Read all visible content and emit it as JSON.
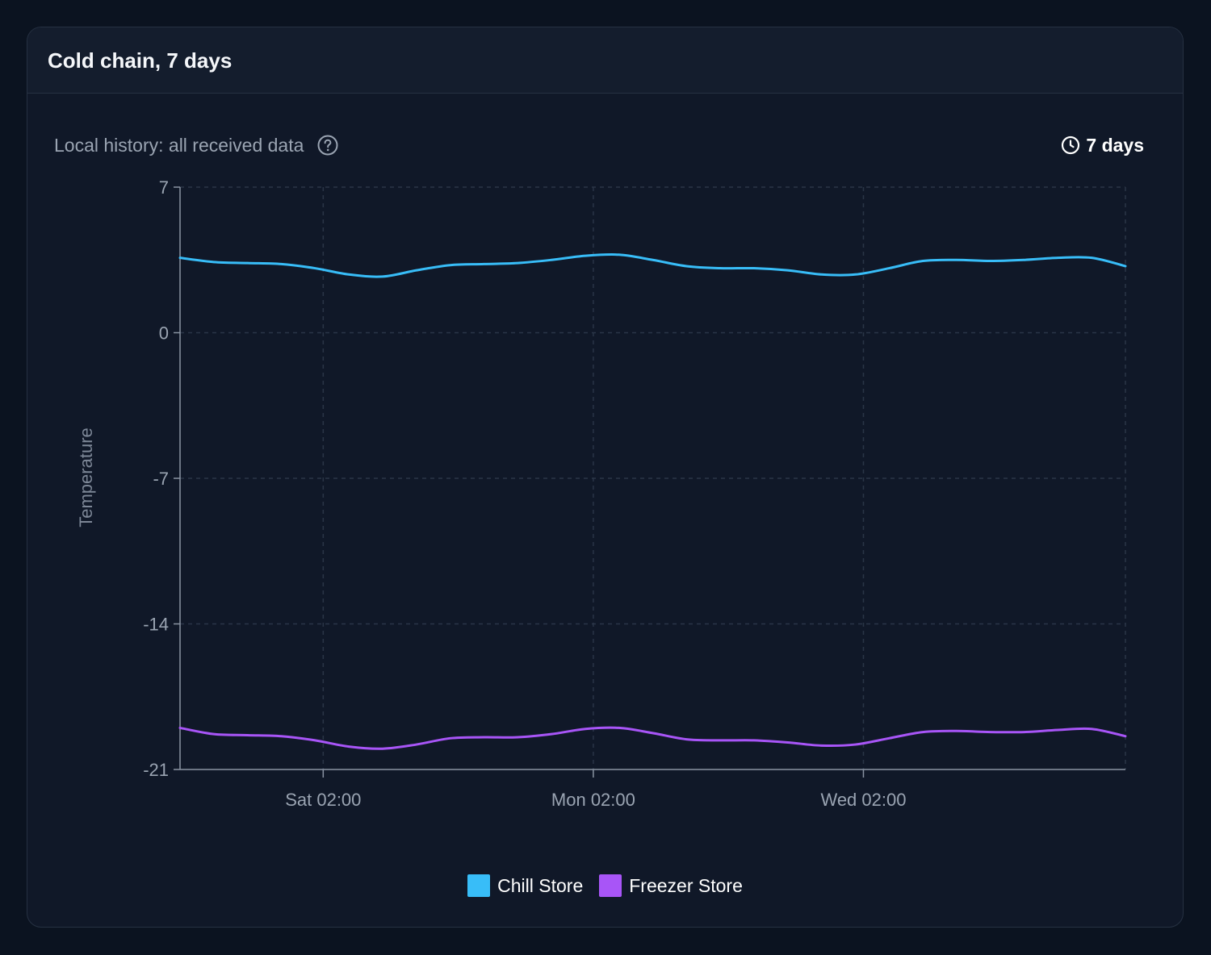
{
  "card": {
    "title": "Cold chain, 7 days",
    "subtitle": "Local history: all received data",
    "range_label": "7 days"
  },
  "icons": {
    "help": "help-circle-icon",
    "clock": "clock-icon"
  },
  "colors": {
    "chill": "#38bdf8",
    "freezer": "#a855f7"
  },
  "chart_data": {
    "type": "line",
    "title": "",
    "xlabel": "",
    "ylabel": "Temperature",
    "ylim": [
      -21,
      7
    ],
    "yticks": [
      7,
      0,
      -7,
      -14,
      -21
    ],
    "xlim": [
      0,
      7
    ],
    "xticks": [
      {
        "x": 1.06,
        "label": "Sat 02:00"
      },
      {
        "x": 3.06,
        "label": "Mon 02:00"
      },
      {
        "x": 5.06,
        "label": "Wed 02:00"
      }
    ],
    "grid": true,
    "legend_position": "bottom",
    "x": [
      0,
      0.25,
      0.5,
      0.75,
      1.0,
      1.25,
      1.5,
      1.75,
      2.0,
      2.25,
      2.5,
      2.75,
      3.0,
      3.25,
      3.5,
      3.75,
      4.0,
      4.25,
      4.5,
      4.75,
      5.0,
      5.25,
      5.5,
      5.75,
      6.0,
      6.25,
      6.5,
      6.75,
      7.0
    ],
    "series": [
      {
        "name": "Chill Store",
        "color": "#38bdf8",
        "values": [
          3.6,
          3.4,
          3.35,
          3.3,
          3.1,
          2.8,
          2.7,
          3.0,
          3.25,
          3.3,
          3.35,
          3.5,
          3.7,
          3.75,
          3.5,
          3.2,
          3.1,
          3.1,
          3.0,
          2.8,
          2.8,
          3.1,
          3.45,
          3.5,
          3.45,
          3.5,
          3.6,
          3.6,
          3.2
        ]
      },
      {
        "name": "Freezer Store",
        "color": "#a855f7",
        "values": [
          -19.0,
          -19.3,
          -19.35,
          -19.4,
          -19.6,
          -19.9,
          -20.0,
          -19.8,
          -19.5,
          -19.45,
          -19.45,
          -19.3,
          -19.05,
          -19.0,
          -19.25,
          -19.55,
          -19.6,
          -19.6,
          -19.7,
          -19.85,
          -19.8,
          -19.5,
          -19.2,
          -19.15,
          -19.2,
          -19.2,
          -19.1,
          -19.05,
          -19.4
        ]
      }
    ]
  }
}
